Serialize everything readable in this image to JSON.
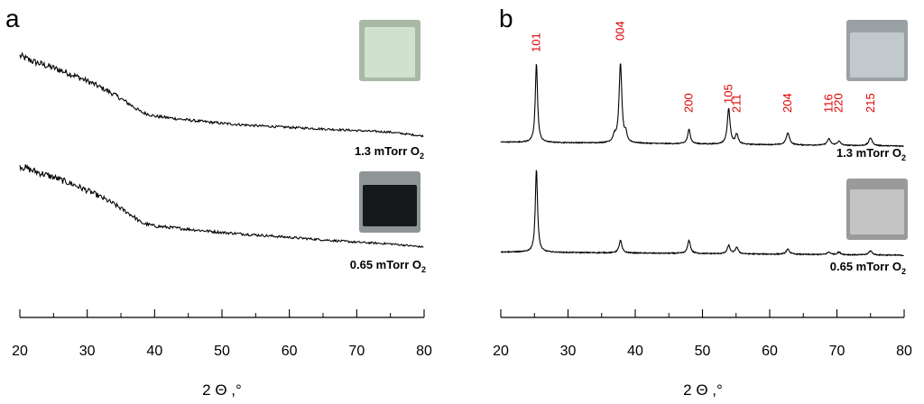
{
  "colors": {
    "trace": "#000000",
    "peak_label": "#e00000",
    "axis": "#000000"
  },
  "swatch_colors": {
    "a_1_3": {
      "fill": "#d4e6d2",
      "edge": "#a9b9a6"
    },
    "a_0_65": {
      "fill": "#15191c",
      "edge": "#8f9596"
    },
    "b_1_3": {
      "fill": "#c9d0d4",
      "edge": "#9aa1a5"
    },
    "b_0_65": {
      "fill": "#cbcbcb",
      "edge": "#9a9a9a"
    }
  },
  "chart_data": [
    {
      "panel": "a",
      "type": "line",
      "xlabel": "2 Θ ,°",
      "xlim": [
        20,
        80
      ],
      "xticks": [
        20,
        30,
        40,
        50,
        60,
        70,
        80
      ],
      "grid": false,
      "series": [
        {
          "name": "1.3 mTorr O₂",
          "label_main": "1.3 mTorr O",
          "label_sub": "2",
          "baseline_anchor_x": 80,
          "x": [
            20,
            22,
            25,
            28,
            31,
            34,
            37,
            38,
            40,
            45,
            50,
            55,
            60,
            65,
            70,
            75,
            80
          ],
          "y": [
            1.0,
            0.93,
            0.85,
            0.76,
            0.65,
            0.52,
            0.36,
            0.3,
            0.25,
            0.2,
            0.16,
            0.13,
            0.11,
            0.09,
            0.07,
            0.05,
            0.0
          ]
        },
        {
          "name": "0.65 mTorr O₂",
          "label_main": "0.65 mTorr O",
          "label_sub": "2",
          "baseline_anchor_x": 80,
          "x": [
            20,
            22,
            25,
            28,
            31,
            34,
            37,
            38,
            40,
            45,
            50,
            55,
            60,
            65,
            70,
            75,
            80
          ],
          "y": [
            1.0,
            0.94,
            0.86,
            0.77,
            0.66,
            0.53,
            0.37,
            0.3,
            0.26,
            0.22,
            0.18,
            0.15,
            0.12,
            0.09,
            0.06,
            0.04,
            0.0
          ]
        }
      ]
    },
    {
      "panel": "b",
      "type": "line",
      "xlabel": "2 Θ ,°",
      "xlim": [
        20,
        80
      ],
      "xticks": [
        20,
        30,
        40,
        50,
        60,
        70,
        80
      ],
      "grid": false,
      "peak_labels": [
        {
          "text": "101",
          "x": 25.3
        },
        {
          "text": "004",
          "x": 37.8
        },
        {
          "text": "200",
          "x": 48.0
        },
        {
          "text": "105",
          "x": 53.9
        },
        {
          "text": "211",
          "x": 55.1
        },
        {
          "text": "204",
          "x": 62.7
        },
        {
          "text": "116",
          "x": 68.8
        },
        {
          "text": "220",
          "x": 70.3
        },
        {
          "text": "215",
          "x": 75.0
        }
      ],
      "series": [
        {
          "name": "1.3 mTorr O₂",
          "label_main": "1.3 mTorr O",
          "label_sub": "2",
          "baseline": 0.05,
          "slope": -0.05,
          "peaks": [
            {
              "x": 25.3,
              "h": 1.0,
              "w": 0.2
            },
            {
              "x": 36.9,
              "h": 0.08,
              "w": 0.25
            },
            {
              "x": 37.8,
              "h": 1.0,
              "w": 0.25
            },
            {
              "x": 38.6,
              "h": 0.1,
              "w": 0.2
            },
            {
              "x": 48.0,
              "h": 0.18,
              "w": 0.25
            },
            {
              "x": 53.9,
              "h": 0.45,
              "w": 0.25
            },
            {
              "x": 55.1,
              "h": 0.12,
              "w": 0.25
            },
            {
              "x": 62.7,
              "h": 0.15,
              "w": 0.3
            },
            {
              "x": 68.8,
              "h": 0.08,
              "w": 0.3
            },
            {
              "x": 70.3,
              "h": 0.05,
              "w": 0.3
            },
            {
              "x": 75.0,
              "h": 0.1,
              "w": 0.3
            }
          ]
        },
        {
          "name": "0.65 mTorr O₂",
          "label_main": "0.65 mTorr O",
          "label_sub": "2",
          "baseline": 0.05,
          "slope": -0.04,
          "peaks": [
            {
              "x": 25.3,
              "h": 1.0,
              "w": 0.2
            },
            {
              "x": 37.8,
              "h": 0.15,
              "w": 0.25
            },
            {
              "x": 48.0,
              "h": 0.16,
              "w": 0.25
            },
            {
              "x": 53.9,
              "h": 0.1,
              "w": 0.25
            },
            {
              "x": 55.1,
              "h": 0.08,
              "w": 0.25
            },
            {
              "x": 62.7,
              "h": 0.06,
              "w": 0.3
            },
            {
              "x": 68.8,
              "h": 0.03,
              "w": 0.3
            },
            {
              "x": 70.3,
              "h": 0.03,
              "w": 0.3
            },
            {
              "x": 75.0,
              "h": 0.05,
              "w": 0.3
            }
          ]
        }
      ]
    }
  ]
}
